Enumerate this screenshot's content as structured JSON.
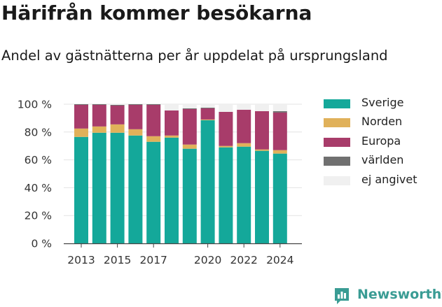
{
  "header": {
    "title": "Härifrån kommer besökarna",
    "subtitle": "Andel av gästnätterna per år uppdelat på ursprungsland"
  },
  "chart_data": {
    "type": "bar",
    "stacked": true,
    "categories": [
      "2013",
      "2014",
      "2015",
      "2016",
      "2017",
      "2018",
      "2019",
      "2020",
      "2021",
      "2022",
      "2023",
      "2024"
    ],
    "x_tick_labels": [
      "2013",
      "2015",
      "2017",
      "2020",
      "2022",
      "2024"
    ],
    "y_tick_labels": [
      "0 %",
      "20 %",
      "40 %",
      "60 %",
      "80 %",
      "100 %"
    ],
    "ylim": [
      0,
      100
    ],
    "grid": true,
    "legend_position": "right",
    "series": [
      {
        "name": "Sverige",
        "color": "#14a89a",
        "values": [
          76.5,
          79.5,
          79.5,
          77.5,
          73,
          76,
          68,
          88.5,
          69,
          69.5,
          66.5,
          64.5
        ]
      },
      {
        "name": "Norden",
        "color": "#e0b15a",
        "values": [
          6,
          4.5,
          6,
          4.5,
          4,
          1.5,
          3,
          0.5,
          1,
          2.5,
          1,
          2.5
        ]
      },
      {
        "name": "Europa",
        "color": "#a83c6a",
        "values": [
          17,
          15.5,
          13.5,
          17.5,
          22.5,
          18,
          25.5,
          8,
          24.5,
          24,
          27.5,
          27
        ]
      },
      {
        "name": "världen",
        "color": "#707070",
        "values": [
          0.5,
          0.5,
          0.5,
          0.5,
          0.5,
          0,
          0.5,
          0.5,
          0,
          0,
          0,
          1
        ]
      },
      {
        "name": "ej angivet",
        "color": "#f0f0f0",
        "values": [
          0,
          0,
          0.5,
          0,
          0,
          4.5,
          3,
          2.5,
          5.5,
          4,
          5,
          5
        ]
      }
    ]
  },
  "brand": {
    "name": "Newsworthy",
    "accent_color": "#3a9c94",
    "icon": "newsworthy-logo-icon"
  }
}
